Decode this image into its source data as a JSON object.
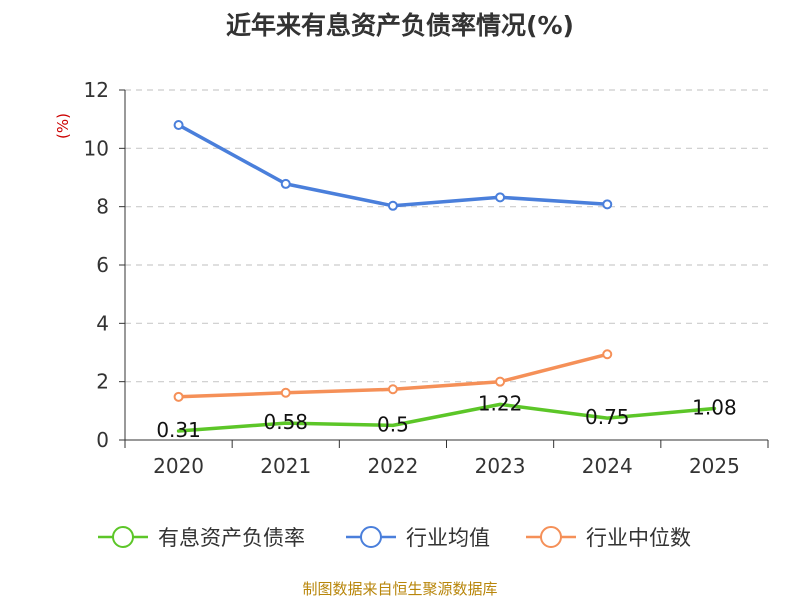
{
  "chart_data": {
    "type": "line",
    "title": "近年来有息资产负债率情况(%)",
    "ylabel": "(%)",
    "xlabel": "",
    "categories": [
      "2020",
      "2021",
      "2022",
      "2023",
      "2024",
      "2025"
    ],
    "y_ticks": [
      "0",
      "2",
      "4",
      "6",
      "8",
      "10",
      "12"
    ],
    "ylim": [
      0,
      12
    ],
    "grid": "horizontal dashed",
    "legend_position": "bottom",
    "series": [
      {
        "name": "有息资产负债率",
        "color": "#5cc628",
        "values": [
          0.31,
          0.58,
          0.5,
          1.22,
          0.75,
          1.08
        ],
        "labels": [
          "0.31",
          "0.58",
          "0.5",
          "1.22",
          "0.75",
          "1.08"
        ],
        "markers": false
      },
      {
        "name": "行业均值",
        "color": "#4a7fdb",
        "values": [
          10.8,
          8.78,
          8.03,
          8.32,
          8.08,
          null
        ],
        "markers": true
      },
      {
        "name": "行业中位数",
        "color": "#f59058",
        "values": [
          1.48,
          1.62,
          1.74,
          2.0,
          2.94,
          null
        ],
        "markers": true
      }
    ],
    "source": "制图数据来自恒生聚源数据库"
  }
}
